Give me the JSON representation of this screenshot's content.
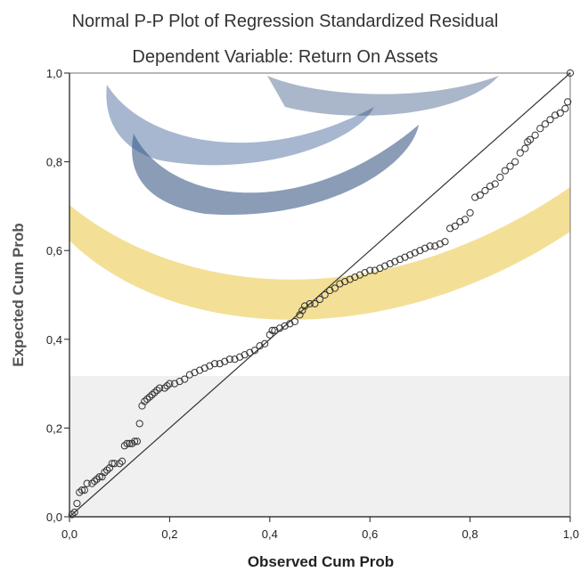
{
  "chart_data": {
    "type": "scatter",
    "title": "Normal P-P Plot of Regression Standardized Residual",
    "subtitle": "Dependent Variable: Return On Assets",
    "xlabel": "Observed Cum Prob",
    "ylabel": "Expected Cum Prob",
    "xlim": [
      0,
      1
    ],
    "ylim": [
      0,
      1
    ],
    "x_ticks": [
      "0,0",
      "0,2",
      "0,4",
      "0,6",
      "0,8",
      "1,0"
    ],
    "y_ticks": [
      "0,0",
      "0,2",
      "0,4",
      "0,6",
      "0,8",
      "1,0"
    ],
    "reference_line": [
      [
        0,
        0
      ],
      [
        1,
        1
      ]
    ],
    "grid": false,
    "colors": {
      "marker_stroke": "#333333",
      "line": "#333333",
      "plot_frame": "#888888",
      "plot_bg": "#f0f0f0"
    },
    "points": [
      [
        0.005,
        0.005
      ],
      [
        0.01,
        0.01
      ],
      [
        0.015,
        0.03
      ],
      [
        0.02,
        0.055
      ],
      [
        0.025,
        0.06
      ],
      [
        0.03,
        0.06
      ],
      [
        0.035,
        0.075
      ],
      [
        0.045,
        0.075
      ],
      [
        0.05,
        0.08
      ],
      [
        0.055,
        0.085
      ],
      [
        0.06,
        0.09
      ],
      [
        0.065,
        0.09
      ],
      [
        0.07,
        0.1
      ],
      [
        0.075,
        0.105
      ],
      [
        0.08,
        0.11
      ],
      [
        0.085,
        0.12
      ],
      [
        0.09,
        0.12
      ],
      [
        0.1,
        0.12
      ],
      [
        0.105,
        0.125
      ],
      [
        0.11,
        0.16
      ],
      [
        0.115,
        0.165
      ],
      [
        0.12,
        0.165
      ],
      [
        0.125,
        0.165
      ],
      [
        0.13,
        0.17
      ],
      [
        0.135,
        0.17
      ],
      [
        0.14,
        0.21
      ],
      [
        0.145,
        0.25
      ],
      [
        0.15,
        0.26
      ],
      [
        0.155,
        0.265
      ],
      [
        0.16,
        0.27
      ],
      [
        0.165,
        0.275
      ],
      [
        0.17,
        0.28
      ],
      [
        0.175,
        0.285
      ],
      [
        0.18,
        0.29
      ],
      [
        0.19,
        0.29
      ],
      [
        0.195,
        0.295
      ],
      [
        0.2,
        0.3
      ],
      [
        0.21,
        0.3
      ],
      [
        0.22,
        0.305
      ],
      [
        0.23,
        0.31
      ],
      [
        0.24,
        0.32
      ],
      [
        0.25,
        0.325
      ],
      [
        0.26,
        0.33
      ],
      [
        0.27,
        0.335
      ],
      [
        0.28,
        0.34
      ],
      [
        0.29,
        0.345
      ],
      [
        0.3,
        0.345
      ],
      [
        0.31,
        0.35
      ],
      [
        0.32,
        0.355
      ],
      [
        0.33,
        0.355
      ],
      [
        0.34,
        0.36
      ],
      [
        0.35,
        0.365
      ],
      [
        0.36,
        0.37
      ],
      [
        0.37,
        0.375
      ],
      [
        0.38,
        0.385
      ],
      [
        0.39,
        0.39
      ],
      [
        0.4,
        0.41
      ],
      [
        0.405,
        0.42
      ],
      [
        0.41,
        0.42
      ],
      [
        0.42,
        0.425
      ],
      [
        0.43,
        0.43
      ],
      [
        0.44,
        0.435
      ],
      [
        0.45,
        0.44
      ],
      [
        0.46,
        0.455
      ],
      [
        0.465,
        0.465
      ],
      [
        0.47,
        0.475
      ],
      [
        0.48,
        0.48
      ],
      [
        0.49,
        0.48
      ],
      [
        0.5,
        0.49
      ],
      [
        0.51,
        0.5
      ],
      [
        0.52,
        0.51
      ],
      [
        0.53,
        0.515
      ],
      [
        0.54,
        0.525
      ],
      [
        0.55,
        0.53
      ],
      [
        0.56,
        0.535
      ],
      [
        0.57,
        0.54
      ],
      [
        0.58,
        0.545
      ],
      [
        0.59,
        0.55
      ],
      [
        0.6,
        0.555
      ],
      [
        0.61,
        0.555
      ],
      [
        0.62,
        0.56
      ],
      [
        0.63,
        0.565
      ],
      [
        0.64,
        0.57
      ],
      [
        0.65,
        0.575
      ],
      [
        0.66,
        0.58
      ],
      [
        0.67,
        0.585
      ],
      [
        0.68,
        0.59
      ],
      [
        0.69,
        0.595
      ],
      [
        0.7,
        0.6
      ],
      [
        0.71,
        0.605
      ],
      [
        0.72,
        0.61
      ],
      [
        0.73,
        0.61
      ],
      [
        0.74,
        0.615
      ],
      [
        0.75,
        0.62
      ],
      [
        0.76,
        0.65
      ],
      [
        0.77,
        0.655
      ],
      [
        0.78,
        0.665
      ],
      [
        0.79,
        0.67
      ],
      [
        0.8,
        0.685
      ],
      [
        0.81,
        0.72
      ],
      [
        0.82,
        0.725
      ],
      [
        0.83,
        0.735
      ],
      [
        0.84,
        0.745
      ],
      [
        0.85,
        0.75
      ],
      [
        0.86,
        0.765
      ],
      [
        0.87,
        0.78
      ],
      [
        0.88,
        0.79
      ],
      [
        0.89,
        0.8
      ],
      [
        0.9,
        0.82
      ],
      [
        0.91,
        0.83
      ],
      [
        0.915,
        0.845
      ],
      [
        0.92,
        0.85
      ],
      [
        0.93,
        0.86
      ],
      [
        0.94,
        0.875
      ],
      [
        0.95,
        0.885
      ],
      [
        0.96,
        0.895
      ],
      [
        0.97,
        0.905
      ],
      [
        0.98,
        0.91
      ],
      [
        0.99,
        0.92
      ],
      [
        0.995,
        0.935
      ],
      [
        1.0,
        1.0
      ]
    ]
  }
}
